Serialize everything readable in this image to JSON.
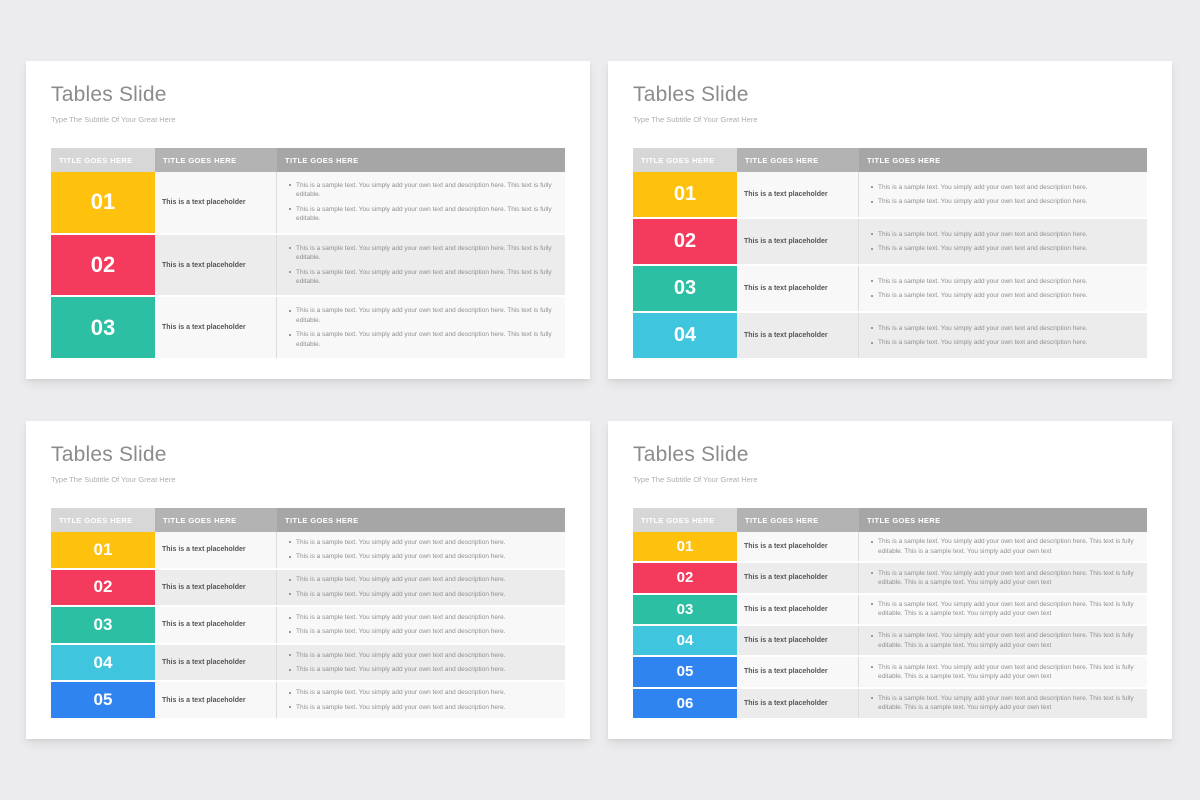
{
  "canvas": {
    "background": "#ECECEE"
  },
  "palette": {
    "row_yellow": "#FDC10E",
    "row_red": "#F53B5D",
    "row_teal": "#2DBFA3",
    "row_cyan": "#3FC5DD",
    "row_blue": "#3084EF",
    "header_col1": "#D7D7D7",
    "header_col2": "#B3B3B3",
    "header_col3": "#A6A6A6"
  },
  "slides": [
    {
      "title": "Tables Slide",
      "subtitle": "Type The Subtitle Of Your Great Here",
      "headers": [
        "TITLE GOES HERE",
        "TITLE GOES HERE",
        "TITLE GOES HERE"
      ],
      "rows": [
        {
          "number": "01",
          "color": "#FDC10E",
          "placeholder": "This is a text placeholder",
          "bullets": [
            "This is a sample text. You simply add your own text and description here. This text is fully editable.",
            "This is a sample text. You simply add your own text and description here. This text is fully editable."
          ]
        },
        {
          "number": "02",
          "color": "#F53B5D",
          "placeholder": "This is a text placeholder",
          "bullets": [
            "This is a sample text. You simply add your own text and description here. This text is fully editable.",
            "This is a sample text. You simply add your own text and description here. This text is fully editable."
          ]
        },
        {
          "number": "03",
          "color": "#2DBFA3",
          "placeholder": "This is a text placeholder",
          "bullets": [
            "This is a sample text. You simply add your own text and description here. This text is fully editable.",
            "This is a sample text. You simply add your own text and description here. This text is fully editable."
          ]
        }
      ]
    },
    {
      "title": "Tables Slide",
      "subtitle": "Type The Subtitle Of Your Great Here",
      "headers": [
        "TITLE GOES HERE",
        "TITLE GOES HERE",
        "TITLE GOES HERE"
      ],
      "rows": [
        {
          "number": "01",
          "color": "#FDC10E",
          "placeholder": "This is a text placeholder",
          "bullets": [
            "This is a sample text. You simply add your own text and description here.",
            "This is a sample text. You simply add your own text and description here."
          ]
        },
        {
          "number": "02",
          "color": "#F53B5D",
          "placeholder": "This is a text placeholder",
          "bullets": [
            "This is a sample text. You simply add your own text and description here.",
            "This is a sample text. You simply add your own text and description here."
          ]
        },
        {
          "number": "03",
          "color": "#2DBFA3",
          "placeholder": "This is a text placeholder",
          "bullets": [
            "This is a sample text. You simply add your own text and description here.",
            "This is a sample text. You simply add your own text and description here."
          ]
        },
        {
          "number": "04",
          "color": "#3FC5DD",
          "placeholder": "This is a text placeholder",
          "bullets": [
            "This is a sample text. You simply add your own text and description here.",
            "This is a sample text. You simply add your own text and description here."
          ]
        }
      ]
    },
    {
      "title": "Tables Slide",
      "subtitle": "Type The Subtitle Of Your Great Here",
      "headers": [
        "TITLE GOES HERE",
        "TITLE GOES HERE",
        "TITLE GOES HERE"
      ],
      "rows": [
        {
          "number": "01",
          "color": "#FDC10E",
          "placeholder": "This is a text placeholder",
          "bullets": [
            "This is a sample text. You simply add your own text and description here.",
            "This is a sample text. You simply add your own text and description here."
          ]
        },
        {
          "number": "02",
          "color": "#F53B5D",
          "placeholder": "This is a text placeholder",
          "bullets": [
            "This is a sample text. You simply add your own text and description here.",
            "This is a sample text. You simply add your own text and description here."
          ]
        },
        {
          "number": "03",
          "color": "#2DBFA3",
          "placeholder": "This is a text placeholder",
          "bullets": [
            "This is a sample text. You simply add your own text and description here.",
            "This is a sample text. You simply add your own text and description here."
          ]
        },
        {
          "number": "04",
          "color": "#3FC5DD",
          "placeholder": "This is a text placeholder",
          "bullets": [
            "This is a sample text. You simply add your own text and description here.",
            "This is a sample text. You simply add your own text and description here."
          ]
        },
        {
          "number": "05",
          "color": "#3084EF",
          "placeholder": "This is a text placeholder",
          "bullets": [
            "This is a sample text. You simply add your own text and description here.",
            "This is a sample text. You simply add your own text and description here."
          ]
        }
      ]
    },
    {
      "title": "Tables Slide",
      "subtitle": "Type The Subtitle Of Your Great Here",
      "headers": [
        "TITLE GOES HERE",
        "TITLE GOES HERE",
        "TITLE GOES HERE"
      ],
      "rows": [
        {
          "number": "01",
          "color": "#FDC10E",
          "placeholder": "This is a text placeholder",
          "bullets": [
            "This is a sample text. You simply add your own text and description here. This text is fully editable. This is a sample text. You simply add your own text"
          ]
        },
        {
          "number": "02",
          "color": "#F53B5D",
          "placeholder": "This is a text placeholder",
          "bullets": [
            "This is a sample text. You simply add your own text and description here. This text is fully editable. This is a sample text. You simply add your own text"
          ]
        },
        {
          "number": "03",
          "color": "#2DBFA3",
          "placeholder": "This is a text placeholder",
          "bullets": [
            "This is a sample text. You simply add your own text and description here. This text is fully editable. This is a sample text. You simply add your own text"
          ]
        },
        {
          "number": "04",
          "color": "#3FC5DD",
          "placeholder": "This is a text placeholder",
          "bullets": [
            "This is a sample text. You simply add your own text and description here. This text is fully editable. This is a sample text. You simply add your own text"
          ]
        },
        {
          "number": "05",
          "color": "#3084EF",
          "placeholder": "This is a text placeholder",
          "bullets": [
            "This is a sample text. You simply add your own text and description here. This text is fully editable. This is a sample text. You simply add your own text"
          ]
        },
        {
          "number": "06",
          "color": "#3084EF",
          "placeholder": "This is a text placeholder",
          "bullets": [
            "This is a sample text. You simply add your own text and description here. This text is fully editable. This is a sample text. You simply add your own text"
          ]
        }
      ]
    }
  ]
}
